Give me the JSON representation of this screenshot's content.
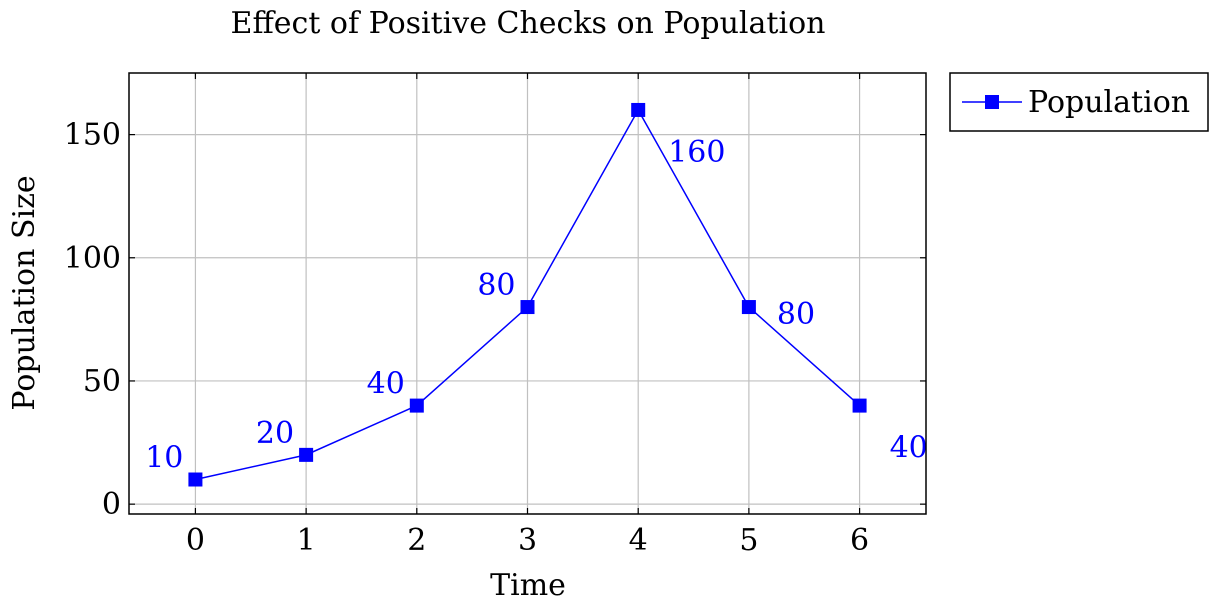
{
  "chart_data": {
    "type": "line",
    "title": "Effect of Positive Checks on Population",
    "xlabel": "Time",
    "ylabel": "Population Size",
    "x": [
      0,
      1,
      2,
      3,
      4,
      5,
      6
    ],
    "series": [
      {
        "name": "Population",
        "values": [
          10,
          20,
          40,
          80,
          160,
          80,
          40
        ],
        "color": "#0000ff",
        "marker": "square"
      }
    ],
    "data_labels": [
      "10",
      "20",
      "40",
      "80",
      "160",
      "80",
      "40"
    ],
    "xticks": [
      0,
      1,
      2,
      3,
      4,
      5,
      6
    ],
    "xtick_labels": [
      "0",
      "1",
      "2",
      "3",
      "4",
      "5",
      "6"
    ],
    "yticks": [
      0,
      50,
      100,
      150
    ],
    "ytick_labels": [
      "0",
      "50",
      "100",
      "150"
    ],
    "xlim": [
      -0.6,
      6.6
    ],
    "ylim": [
      -4,
      175
    ],
    "grid": true,
    "legend_position": "outside-top-right"
  }
}
